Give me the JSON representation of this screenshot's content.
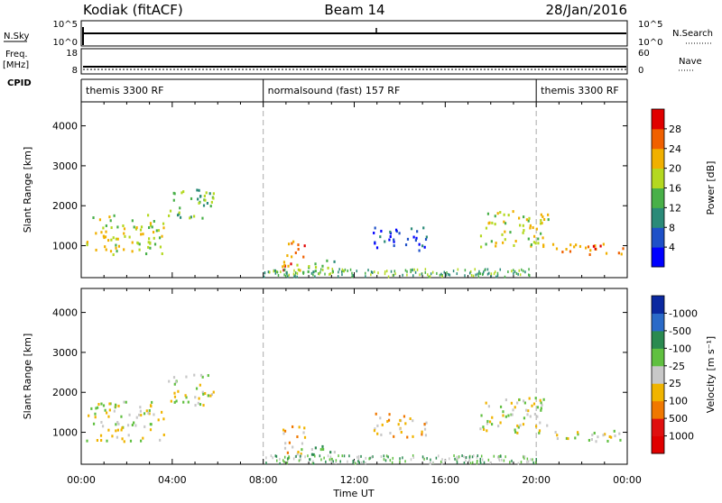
{
  "header": {
    "site": "Kodiak (fitACF)",
    "beam": "Beam 14",
    "date": "28/Jan/2016"
  },
  "summary": {
    "nsky_label": "N.Sky",
    "nsearch_label": "N.Search",
    "freq_label_1": "Freq.",
    "freq_label_2": "[MHz]",
    "nave_label": "Nave",
    "cpid_label": "CPID",
    "nsky_ticks": [
      "10^5",
      "10^0"
    ],
    "nsearch_ticks": [
      "10^5",
      "10^0"
    ],
    "freq_ticks": [
      "18",
      "8"
    ],
    "nave_ticks": [
      "60",
      "0"
    ]
  },
  "cpid": {
    "segments": [
      {
        "label": "themis 3300 RF",
        "start": 0,
        "end": 8
      },
      {
        "label": "normalsound (fast) 157 RF",
        "start": 8,
        "end": 20
      },
      {
        "label": "themis 3300 RF",
        "start": 20,
        "end": 24
      }
    ]
  },
  "chart_data": [
    {
      "type": "heatmap",
      "title": "Power",
      "ylabel": "Slant Range [km]",
      "ylim": [
        200,
        4600
      ],
      "xlim": [
        0,
        24
      ],
      "yticks": [
        "1000",
        "2000",
        "3000",
        "4000"
      ],
      "colorbar": {
        "label": "Power [dB]",
        "ticks": [
          "4",
          "8",
          "12",
          "16",
          "20",
          "24",
          "28"
        ],
        "colors": [
          "#0000ff",
          "#1e50c8",
          "#2a8a78",
          "#48b048",
          "#b4d820",
          "#f0b000",
          "#f06000",
          "#e00000"
        ]
      },
      "regions": [
        {
          "t0": 0.2,
          "t1": 3.6,
          "r0": 800,
          "r1": 1800,
          "level": 4
        },
        {
          "t0": 3.8,
          "t1": 5.8,
          "r0": 1700,
          "r1": 2500,
          "level": 3
        },
        {
          "t0": 8.8,
          "t1": 9.8,
          "r0": 400,
          "r1": 1200,
          "level": 6
        },
        {
          "t0": 9.4,
          "t1": 11.2,
          "r0": 350,
          "r1": 700,
          "level": 3
        },
        {
          "t0": 12.8,
          "t1": 15.2,
          "r0": 900,
          "r1": 1500,
          "level": 1
        },
        {
          "t0": 17.5,
          "t1": 20.5,
          "r0": 1000,
          "r1": 1900,
          "level": 4
        },
        {
          "t0": 20.5,
          "t1": 24,
          "r0": 800,
          "r1": 1100,
          "level": 6
        }
      ]
    },
    {
      "type": "heatmap",
      "title": "Velocity",
      "ylabel": "Slant Range [km]",
      "ylim": [
        200,
        4600
      ],
      "xlim": [
        0,
        24
      ],
      "yticks": [
        "1000",
        "2000",
        "3000",
        "4000"
      ],
      "xticks": [
        "00:00",
        "04:00",
        "08:00",
        "12:00",
        "16:00",
        "20:00",
        "00:00"
      ],
      "xlabel": "Time UT",
      "colorbar": {
        "label": "Velocity [m s⁻¹]",
        "ticks": [
          "1000",
          "500",
          "100",
          "25",
          "-25",
          "-100",
          "-500",
          "-1000"
        ],
        "colors": [
          "#0a28a0",
          "#2a6ac8",
          "#2a8a50",
          "#60c040",
          "#c8c8c8",
          "#f0b400",
          "#f07800",
          "#e01010",
          "#e00000"
        ]
      },
      "regions": [
        {
          "t0": 0.2,
          "t1": 3.6,
          "r0": 800,
          "r1": 1800,
          "level": 4
        },
        {
          "t0": 3.8,
          "t1": 5.8,
          "r0": 1700,
          "r1": 2500,
          "level": 4
        },
        {
          "t0": 8.8,
          "t1": 9.8,
          "r0": 400,
          "r1": 1200,
          "level": 5
        },
        {
          "t0": 9.4,
          "t1": 11.2,
          "r0": 350,
          "r1": 700,
          "level": 3
        },
        {
          "t0": 12.8,
          "t1": 15.2,
          "r0": 900,
          "r1": 1500,
          "level": 5
        },
        {
          "t0": 17.5,
          "t1": 20.5,
          "r0": 1000,
          "r1": 1900,
          "level": 4
        },
        {
          "t0": 20.5,
          "t1": 24,
          "r0": 800,
          "r1": 1100,
          "level": 4
        }
      ]
    }
  ]
}
